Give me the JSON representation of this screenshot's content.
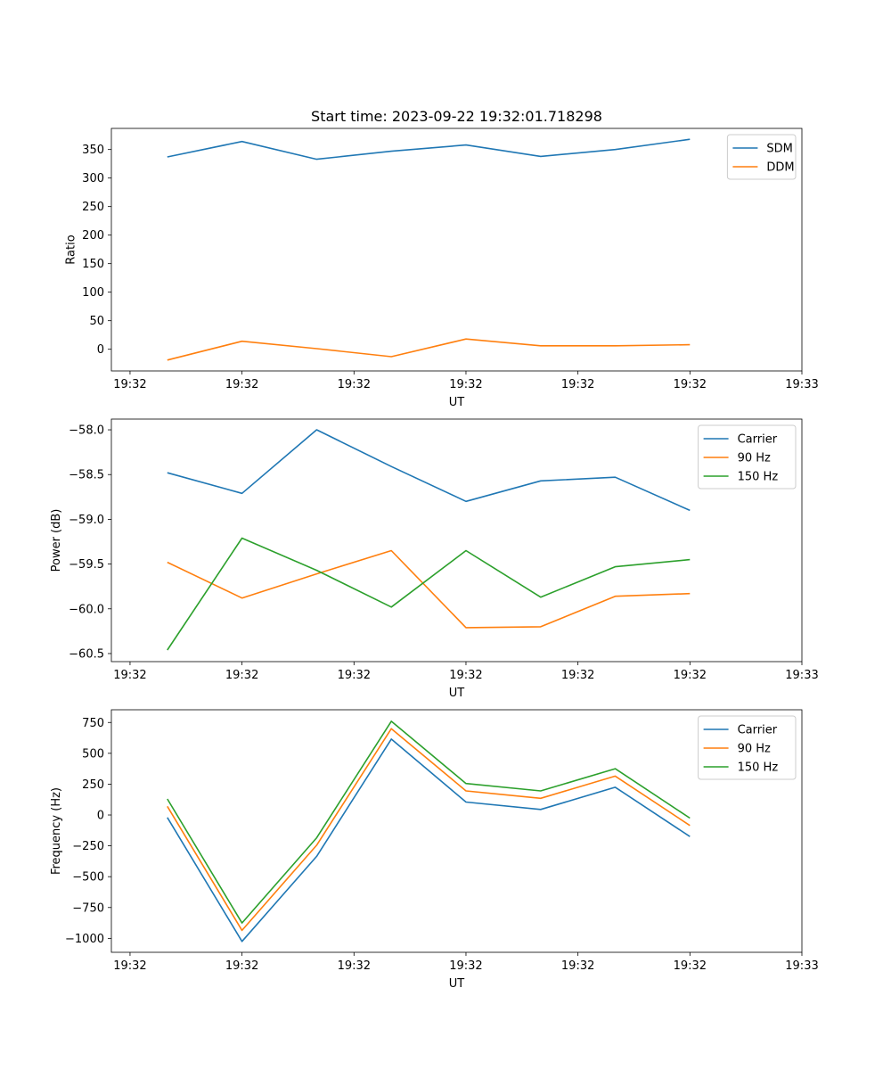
{
  "figure_title": "Start time: 2023-09-22 19:32:01.718298",
  "colors": {
    "blue": "#1f77b4",
    "orange": "#ff7f0e",
    "green": "#2ca02c"
  },
  "chart_data": [
    {
      "type": "line",
      "title": "Start time: 2023-09-22 19:32:01.718298",
      "xlabel": "UT",
      "ylabel": "Ratio",
      "xlim": [
        -0.75,
        8.5
      ],
      "ylim": [
        -38,
        387
      ],
      "x_ticks": [
        -0.5,
        1,
        2.5,
        4,
        5.5,
        7,
        8.5
      ],
      "x_tick_labels": [
        "19:32",
        "19:32",
        "19:32",
        "19:32",
        "19:32",
        "19:32",
        "19:33"
      ],
      "y_ticks": [
        0,
        50,
        100,
        150,
        200,
        250,
        300,
        350
      ],
      "y_tick_labels": [
        "0",
        "50",
        "100",
        "150",
        "200",
        "250",
        "300",
        "350"
      ],
      "legend_position": "upper right",
      "x": [
        0,
        1,
        2,
        3,
        4,
        5,
        6,
        7
      ],
      "series": [
        {
          "name": "SDM",
          "color": "#1f77b4",
          "values": [
            337,
            364,
            333,
            347,
            358,
            338,
            350,
            368
          ]
        },
        {
          "name": "DDM",
          "color": "#ff7f0e",
          "values": [
            -19,
            14,
            1,
            -13,
            18,
            6,
            6,
            8
          ]
        }
      ]
    },
    {
      "type": "line",
      "xlabel": "UT",
      "ylabel": "Power (dB)",
      "xlim": [
        -0.75,
        8.5
      ],
      "ylim": [
        -60.59,
        -57.88
      ],
      "x_ticks": [
        -0.5,
        1,
        2.5,
        4,
        5.5,
        7,
        8.5
      ],
      "x_tick_labels": [
        "19:32",
        "19:32",
        "19:32",
        "19:32",
        "19:32",
        "19:32",
        "19:33"
      ],
      "y_ticks": [
        -60.5,
        -60.0,
        -59.5,
        -59.0,
        -58.5,
        -58.0
      ],
      "y_tick_labels": [
        "−60.5",
        "−60.0",
        "−59.5",
        "−59.0",
        "−58.5",
        "−58.0"
      ],
      "legend_position": "upper right",
      "x": [
        0,
        1,
        2,
        3,
        4,
        5,
        6,
        7
      ],
      "series": [
        {
          "name": "Carrier",
          "color": "#1f77b4",
          "values": [
            -58.48,
            -58.71,
            -58.0,
            -58.41,
            -58.8,
            -58.57,
            -58.53,
            -58.9
          ]
        },
        {
          "name": "90 Hz",
          "color": "#ff7f0e",
          "values": [
            -59.48,
            -59.88,
            -59.61,
            -59.35,
            -60.21,
            -60.2,
            -59.86,
            -59.83
          ]
        },
        {
          "name": "150 Hz",
          "color": "#2ca02c",
          "values": [
            -60.46,
            -59.21,
            -59.57,
            -59.98,
            -59.35,
            -59.87,
            -59.53,
            -59.45
          ]
        }
      ]
    },
    {
      "type": "line",
      "xlabel": "UT",
      "ylabel": "Frequency (Hz)",
      "xlim": [
        -0.75,
        8.5
      ],
      "ylim": [
        -1113,
        853
      ],
      "x_ticks": [
        -0.5,
        1,
        2.5,
        4,
        5.5,
        7,
        8.5
      ],
      "x_tick_labels": [
        "19:32",
        "19:32",
        "19:32",
        "19:32",
        "19:32",
        "19:32",
        "19:33"
      ],
      "y_ticks": [
        -1000,
        -750,
        -500,
        -250,
        0,
        250,
        500,
        750
      ],
      "y_tick_labels": [
        "−1000",
        "−750",
        "−500",
        "−250",
        "0",
        "250",
        "500",
        "750"
      ],
      "legend_position": "upper right",
      "x": [
        0,
        1,
        2,
        3,
        4,
        5,
        6,
        7
      ],
      "series": [
        {
          "name": "Carrier",
          "color": "#1f77b4",
          "values": [
            -20,
            -1025,
            -335,
            615,
            105,
            45,
            225,
            -175
          ]
        },
        {
          "name": "90 Hz",
          "color": "#ff7f0e",
          "values": [
            70,
            -935,
            -245,
            700,
            195,
            135,
            315,
            -85
          ]
        },
        {
          "name": "150 Hz",
          "color": "#2ca02c",
          "values": [
            130,
            -875,
            -185,
            760,
            255,
            195,
            375,
            -25
          ]
        }
      ]
    }
  ]
}
